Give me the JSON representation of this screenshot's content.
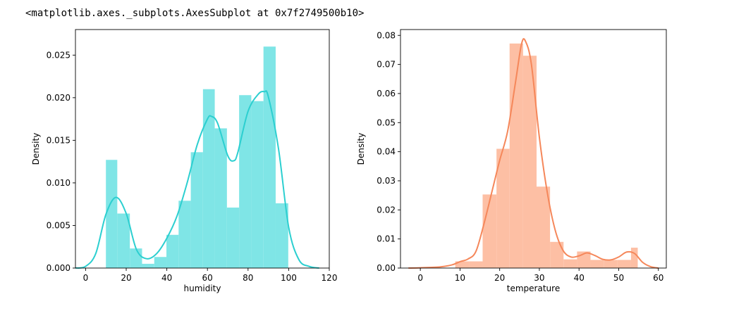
{
  "output_text": "<matplotlib.axes._subplots.AxesSubplot at 0x7f2749500b10>",
  "chart_data": [
    {
      "type": "bar",
      "kde_overlay": true,
      "xlabel": "humidity",
      "ylabel": "Density",
      "xlim": [
        -5,
        120
      ],
      "ylim": [
        0,
        0.028
      ],
      "xticks": [
        0,
        20,
        40,
        60,
        80,
        100,
        120
      ],
      "yticks": [
        0.0,
        0.005,
        0.01,
        0.015,
        0.02,
        0.025
      ],
      "ytick_labels": [
        "0.000",
        "0.005",
        "0.010",
        "0.015",
        "0.020",
        "0.025"
      ],
      "bar_color": "#7fe5e6",
      "line_color": "#2ccfd0",
      "bins": [
        {
          "x0": 10,
          "x1": 15.6,
          "value": 0.0127
        },
        {
          "x0": 15.6,
          "x1": 21.8,
          "value": 0.0064
        },
        {
          "x0": 21.8,
          "x1": 27.8,
          "value": 0.0023
        },
        {
          "x0": 27.8,
          "x1": 33.8,
          "value": 0.0005
        },
        {
          "x0": 33.8,
          "x1": 39.8,
          "value": 0.0013
        },
        {
          "x0": 39.8,
          "x1": 45.8,
          "value": 0.0039
        },
        {
          "x0": 45.8,
          "x1": 51.8,
          "value": 0.0079
        },
        {
          "x0": 51.8,
          "x1": 57.8,
          "value": 0.0136
        },
        {
          "x0": 57.8,
          "x1": 63.6,
          "value": 0.021
        },
        {
          "x0": 63.6,
          "x1": 69.6,
          "value": 0.0164
        },
        {
          "x0": 69.6,
          "x1": 75.6,
          "value": 0.0071
        },
        {
          "x0": 75.6,
          "x1": 81.6,
          "value": 0.0203
        },
        {
          "x0": 81.6,
          "x1": 87.6,
          "value": 0.0196
        },
        {
          "x0": 87.6,
          "x1": 93.6,
          "value": 0.026
        },
        {
          "x0": 93.6,
          "x1": 99.8,
          "value": 0.0076
        }
      ],
      "kde": {
        "x": [
          -5,
          0,
          5,
          10,
          15,
          20,
          25,
          30,
          35,
          40,
          45,
          50,
          55,
          60,
          62,
          65,
          70,
          73,
          75,
          80,
          85,
          88,
          90,
          95,
          100,
          105,
          110,
          115
        ],
        "y": [
          0.0,
          0.0002,
          0.0017,
          0.0063,
          0.0083,
          0.0064,
          0.0022,
          0.0011,
          0.0017,
          0.0035,
          0.0061,
          0.01,
          0.0145,
          0.0175,
          0.0178,
          0.017,
          0.0132,
          0.0126,
          0.0136,
          0.0184,
          0.0204,
          0.0207,
          0.0201,
          0.014,
          0.0048,
          0.001,
          0.0002,
          0.0
        ]
      }
    },
    {
      "type": "bar",
      "kde_overlay": true,
      "xlabel": "temperature",
      "ylabel": "Density",
      "xlim": [
        -5,
        62
      ],
      "ylim": [
        0,
        0.082
      ],
      "xticks": [
        0,
        10,
        20,
        30,
        40,
        50,
        60
      ],
      "yticks": [
        0.0,
        0.01,
        0.02,
        0.03,
        0.04,
        0.05,
        0.06,
        0.07,
        0.08
      ],
      "ytick_labels": [
        "0.00",
        "0.01",
        "0.02",
        "0.03",
        "0.04",
        "0.05",
        "0.06",
        "0.07",
        "0.08"
      ],
      "bar_color": "#fdbfa4",
      "line_color": "#f5875a",
      "bins": [
        {
          "x0": 8.8,
          "x1": 12.4,
          "value": 0.0023
        },
        {
          "x0": 12.4,
          "x1": 15.7,
          "value": 0.0023
        },
        {
          "x0": 15.7,
          "x1": 19.2,
          "value": 0.0253
        },
        {
          "x0": 19.2,
          "x1": 22.5,
          "value": 0.041
        },
        {
          "x0": 22.5,
          "x1": 25.9,
          "value": 0.0772
        },
        {
          "x0": 25.9,
          "x1": 29.3,
          "value": 0.073
        },
        {
          "x0": 29.3,
          "x1": 32.7,
          "value": 0.028
        },
        {
          "x0": 32.7,
          "x1": 36.1,
          "value": 0.009
        },
        {
          "x0": 36.1,
          "x1": 39.5,
          "value": 0.003
        },
        {
          "x0": 39.5,
          "x1": 42.9,
          "value": 0.0057
        },
        {
          "x0": 42.9,
          "x1": 46.3,
          "value": 0.0028
        },
        {
          "x0": 46.3,
          "x1": 49.7,
          "value": 0.0028
        },
        {
          "x0": 49.7,
          "x1": 53.1,
          "value": 0.0028
        },
        {
          "x0": 53.1,
          "x1": 54.8,
          "value": 0.007
        }
      ],
      "kde": {
        "x": [
          -3,
          0,
          5,
          8,
          10,
          12,
          14,
          16,
          18,
          20,
          22,
          24,
          25.5,
          26.5,
          28,
          30,
          32,
          34,
          36,
          38,
          40,
          42,
          44,
          46,
          48,
          50,
          52,
          54,
          56,
          58,
          60
        ],
        "y": [
          0.0,
          0.0001,
          0.0004,
          0.0011,
          0.0022,
          0.0031,
          0.0057,
          0.015,
          0.026,
          0.037,
          0.047,
          0.064,
          0.077,
          0.078,
          0.07,
          0.045,
          0.026,
          0.013,
          0.006,
          0.0038,
          0.0042,
          0.0052,
          0.0043,
          0.003,
          0.0028,
          0.0038,
          0.0055,
          0.005,
          0.002,
          0.0005,
          0.0
        ]
      }
    }
  ]
}
